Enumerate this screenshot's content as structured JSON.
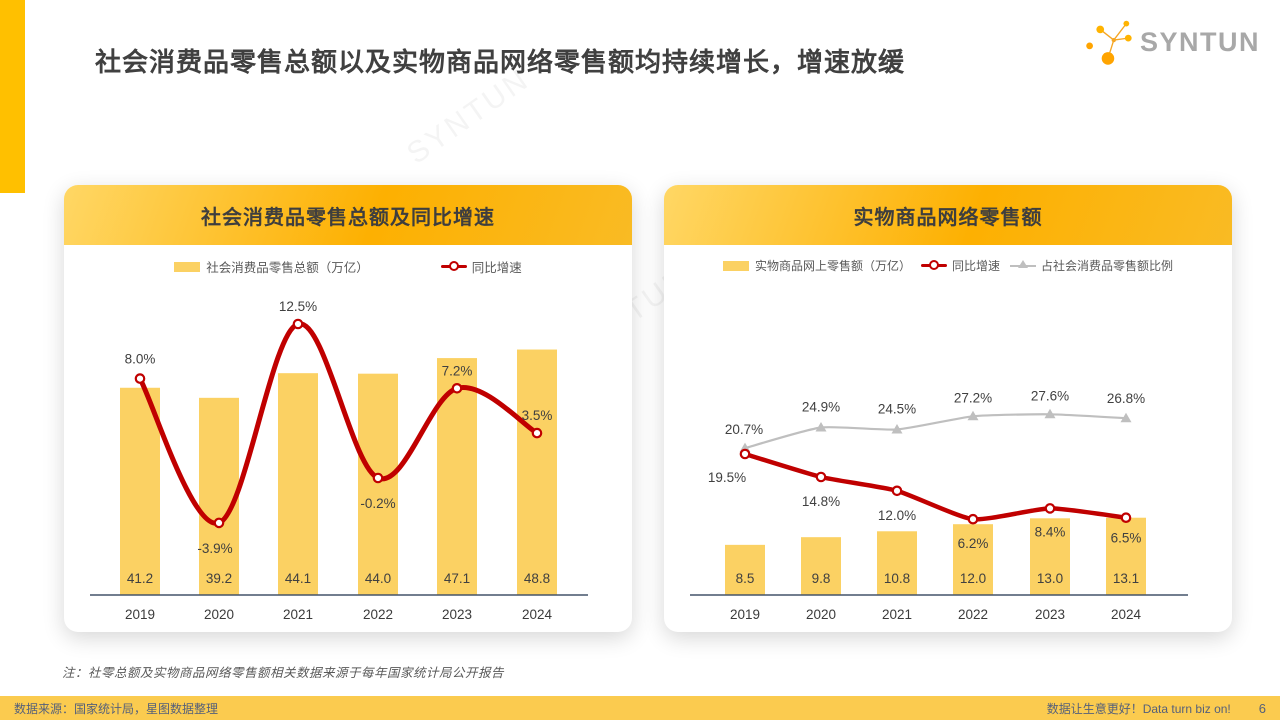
{
  "slide": {
    "title": "社会消费品零售总额以及实物商品网络零售额均持续增长，增速放缓",
    "logo_text": "SYNTUN",
    "watermark": "SYNTUN",
    "note": "注：社零总额及实物商品网络零售额相关数据来源于每年国家统计局公开报告",
    "footer": {
      "left": "数据来源：国家统计局，星图数据整理",
      "right": "数据让生意更好！Data turn biz on!",
      "page": "6"
    }
  },
  "colors": {
    "accent_yellow": "#FFC000",
    "bar_yellow": "#FBD163",
    "line_red": "#C00000",
    "line_gray": "#BFBFBF",
    "axis": "#44546A",
    "header_gradient_from": "#FFD765",
    "header_gradient_to": "#FDB001",
    "footer_bg": "#FBCB4F",
    "title_text": "#404040",
    "logo_gray": "#A8A8A8",
    "logo_orange": "#FFA400"
  },
  "chart_data": [
    {
      "type": "bar+line",
      "title": "社会消费品零售总额及同比增速",
      "categories": [
        "2019",
        "2020",
        "2021",
        "2022",
        "2023",
        "2024"
      ],
      "legend_position": "top",
      "grid": false,
      "series": [
        {
          "name": "社会消费品零售总额（万亿）",
          "type": "bar",
          "values": [
            41.2,
            39.2,
            44.1,
            44.0,
            47.1,
            48.8
          ],
          "labels": [
            "41.2",
            "39.2",
            "44.1",
            "44.0",
            "47.1",
            "48.8"
          ],
          "color": "#FBD163"
        },
        {
          "name": "同比增速",
          "type": "line",
          "marker": "circle",
          "values": [
            8.0,
            -3.9,
            12.5,
            -0.2,
            7.2,
            3.5
          ],
          "labels": [
            "8.0%",
            "-3.9%",
            "12.5%",
            "-0.2%",
            "7.2%",
            "3.5%"
          ],
          "color": "#C00000"
        }
      ]
    },
    {
      "type": "bar+line",
      "title": "实物商品网络零售额",
      "categories": [
        "2019",
        "2020",
        "2021",
        "2022",
        "2023",
        "2024"
      ],
      "legend_position": "top",
      "grid": false,
      "series": [
        {
          "name": "实物商品网上零售额（万亿）",
          "type": "bar",
          "values": [
            8.5,
            9.8,
            10.8,
            12.0,
            13.0,
            13.1
          ],
          "labels": [
            "8.5",
            "9.8",
            "10.8",
            "12.0",
            "13.0",
            "13.1"
          ],
          "color": "#FBD163"
        },
        {
          "name": "同比增速",
          "type": "line",
          "marker": "circle",
          "values": [
            19.5,
            14.8,
            12.0,
            6.2,
            8.4,
            6.5
          ],
          "labels": [
            "19.5%",
            "14.8%",
            "12.0%",
            "6.2%",
            "8.4%",
            "6.5%"
          ],
          "color": "#C00000"
        },
        {
          "name": "占社会消费品零售额比例",
          "type": "line",
          "marker": "triangle",
          "values": [
            20.7,
            24.9,
            24.5,
            27.2,
            27.6,
            26.8
          ],
          "labels": [
            "20.7%",
            "24.9%",
            "24.5%",
            "27.2%",
            "27.6%",
            "26.8%"
          ],
          "color": "#BFBFBF"
        }
      ]
    }
  ]
}
